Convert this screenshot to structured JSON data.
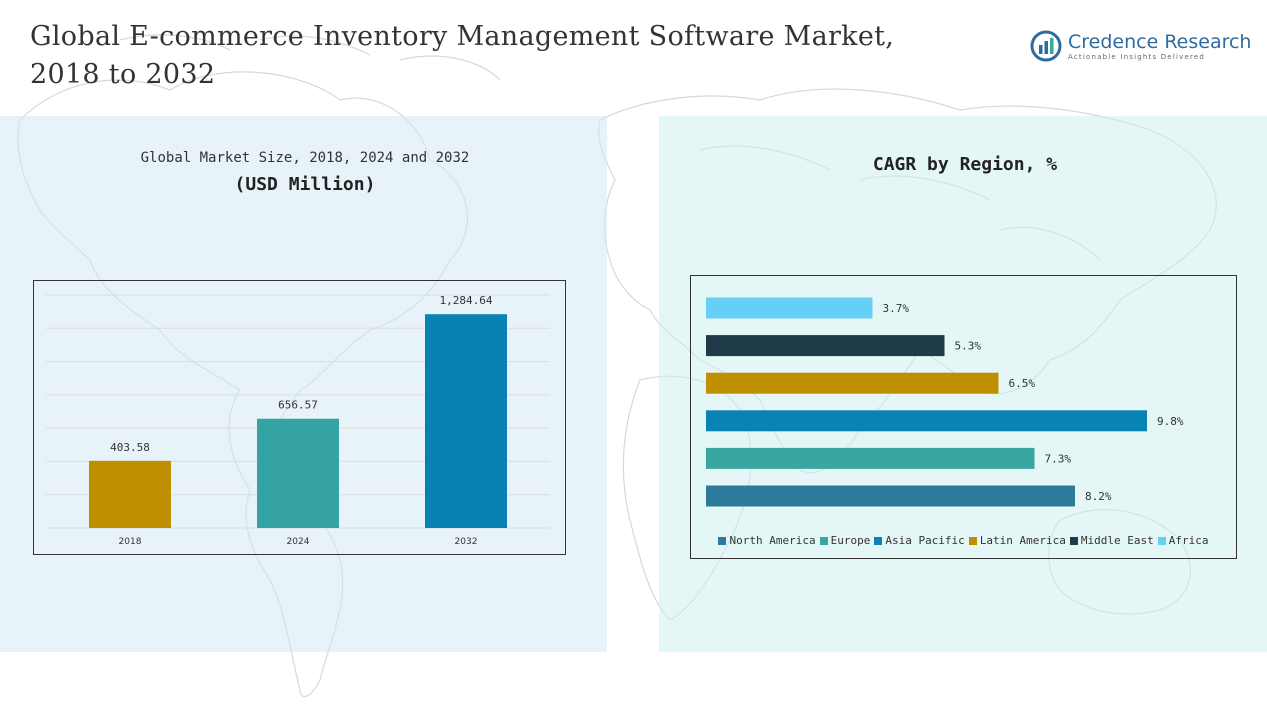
{
  "header": {
    "title": "Global E-commerce Inventory Management Software Market,\n2018 to 2032",
    "logo_name": "Credence Research",
    "logo_tagline": "Actionable Insights Delivered"
  },
  "chart_data": [
    {
      "type": "bar",
      "title": "Global Market Size, 2018, 2024 and 2032",
      "subtitle": "(USD Million)",
      "categories": [
        "2018",
        "2024",
        "2032"
      ],
      "values": [
        403.58,
        656.57,
        1284.64
      ],
      "value_labels": [
        "403.58",
        "656.57",
        "1,284.64"
      ],
      "colors": [
        "#c08f00",
        "#35a3a3",
        "#0882b2"
      ],
      "ylim": [
        0,
        1400
      ],
      "grid": true
    },
    {
      "type": "bar",
      "orientation": "horizontal",
      "title": "CAGR by Region, %",
      "series": [
        {
          "name": "North America",
          "value": 8.2,
          "label": "8.2%",
          "color": "#2e7a9a"
        },
        {
          "name": "Europe",
          "value": 7.3,
          "label": "7.3%",
          "color": "#3aa6a2"
        },
        {
          "name": "Asia Pacific",
          "value": 9.8,
          "label": "9.8%",
          "color": "#0883b3"
        },
        {
          "name": "Latin America",
          "value": 6.5,
          "label": "6.5%",
          "color": "#c08f00"
        },
        {
          "name": "Middle East",
          "value": 5.3,
          "label": "5.3%",
          "color": "#1f3a48"
        },
        {
          "name": "Africa",
          "value": 3.7,
          "label": "3.7%",
          "color": "#66cff6"
        }
      ],
      "xlim": [
        0,
        10
      ],
      "legend_position": "bottom",
      "grid": false
    }
  ]
}
